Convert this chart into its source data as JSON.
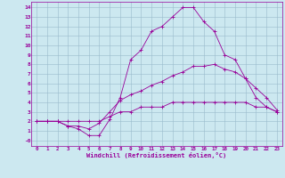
{
  "xlabel": "Windchill (Refroidissement éolien,°C)",
  "bg_color": "#cce8f0",
  "line_color": "#990099",
  "grid_color": "#99bbcc",
  "xlim": [
    -0.5,
    23.5
  ],
  "ylim": [
    -0.6,
    14.6
  ],
  "xticks": [
    0,
    1,
    2,
    3,
    4,
    5,
    6,
    7,
    8,
    9,
    10,
    11,
    12,
    13,
    14,
    15,
    16,
    17,
    18,
    19,
    20,
    21,
    22,
    23
  ],
  "yticks": [
    0,
    1,
    2,
    3,
    4,
    5,
    6,
    7,
    8,
    9,
    10,
    11,
    12,
    13,
    14
  ],
  "line1_x": [
    0,
    1,
    2,
    3,
    4,
    5,
    6,
    7,
    8,
    9,
    10,
    11,
    12,
    13,
    14,
    15,
    16,
    17,
    18,
    19,
    20,
    21,
    22,
    23
  ],
  "line1_y": [
    2,
    2,
    2,
    1.5,
    1.2,
    0.5,
    0.5,
    2.2,
    4.5,
    8.5,
    9.5,
    11.5,
    12,
    13,
    14,
    14,
    12.5,
    11.5,
    9,
    8.5,
    6.5,
    4.5,
    3.5,
    3
  ],
  "line2_x": [
    0,
    1,
    2,
    3,
    4,
    5,
    6,
    7,
    8,
    9,
    10,
    11,
    12,
    13,
    14,
    15,
    16,
    17,
    18,
    19,
    20,
    21,
    22,
    23
  ],
  "line2_y": [
    2,
    2,
    2,
    1.5,
    1.5,
    1.2,
    1.8,
    3.0,
    4.2,
    4.8,
    5.2,
    5.8,
    6.2,
    6.8,
    7.2,
    7.8,
    7.8,
    8.0,
    7.5,
    7.2,
    6.5,
    5.5,
    4.5,
    3.2
  ],
  "line3_x": [
    0,
    1,
    2,
    3,
    4,
    5,
    6,
    7,
    8,
    9,
    10,
    11,
    12,
    13,
    14,
    15,
    16,
    17,
    18,
    19,
    20,
    21,
    22,
    23
  ],
  "line3_y": [
    2,
    2,
    2,
    2,
    2,
    2,
    2,
    2.5,
    3,
    3,
    3.5,
    3.5,
    3.5,
    4,
    4,
    4,
    4,
    4,
    4,
    4,
    4,
    3.5,
    3.5,
    3
  ]
}
